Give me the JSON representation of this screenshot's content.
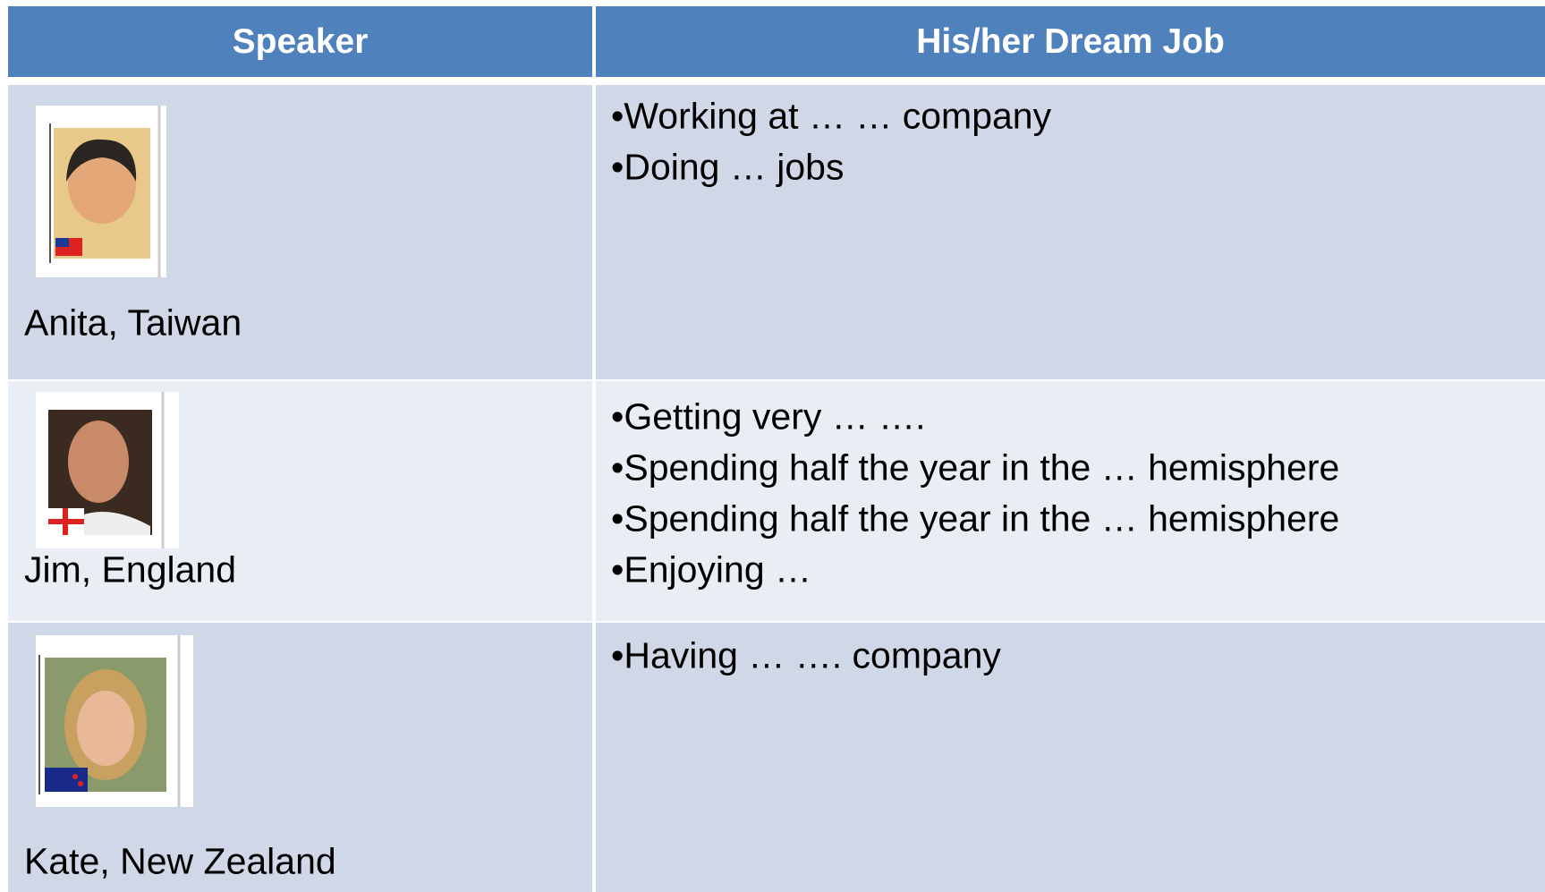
{
  "table": {
    "header": [
      "Speaker",
      "His/her Dream Job"
    ],
    "rows": [
      {
        "speaker": "Anita, Taiwan",
        "items": [
          "•Working at … … company",
          "•Doing … jobs"
        ]
      },
      {
        "speaker": "Jim, England",
        "items": [
          "•Getting very … ….",
          "•Spending half the year in the … hemisphere",
          "•Spending half the year in the … hemisphere",
          "•Enjoying …"
        ]
      },
      {
        "speaker": "Kate, New Zealand",
        "items": [
          "•Having … …. company"
        ]
      }
    ]
  }
}
